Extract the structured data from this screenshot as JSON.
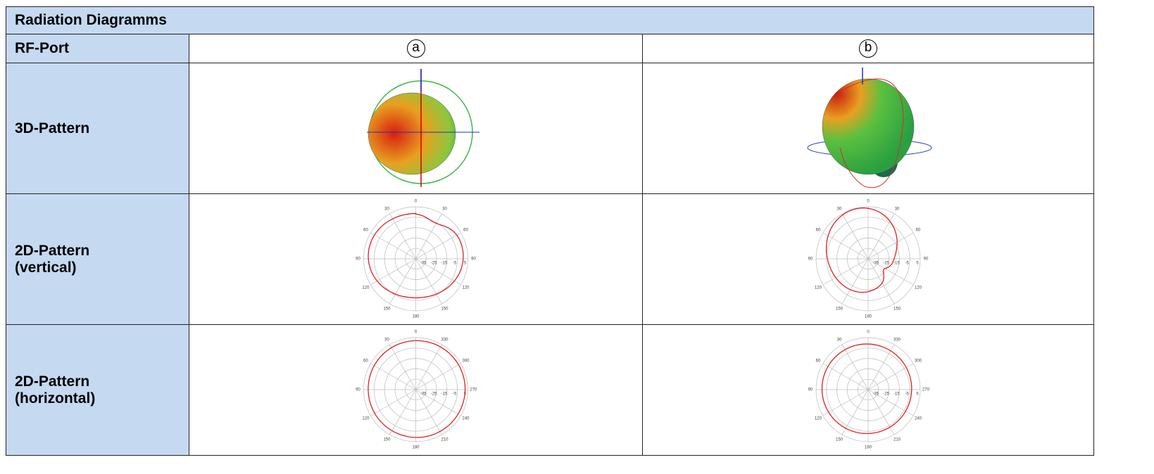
{
  "header": {
    "title": "Radiation Diagramms"
  },
  "table": {
    "port_label": "RF-Port",
    "ports": [
      "a",
      "b"
    ],
    "row_labels": [
      "3D-Pattern",
      "2D-Pattern\n(vertical)",
      "2D-Pattern\n(horizontal)"
    ]
  },
  "polar_charts": {
    "radial_labels": [
      "-35",
      "-25",
      "-15",
      "-5",
      "5"
    ],
    "vertical": {
      "angle_labels": [
        "0",
        "30",
        "60",
        "90",
        "120",
        "150",
        "180",
        "150",
        "120",
        "90",
        "60",
        "30"
      ]
    },
    "horizontal": {
      "angle_labels": [
        "0",
        "330",
        "300",
        "270",
        "240",
        "210",
        "180",
        "150",
        "120",
        "90",
        "60",
        "30"
      ]
    }
  }
}
